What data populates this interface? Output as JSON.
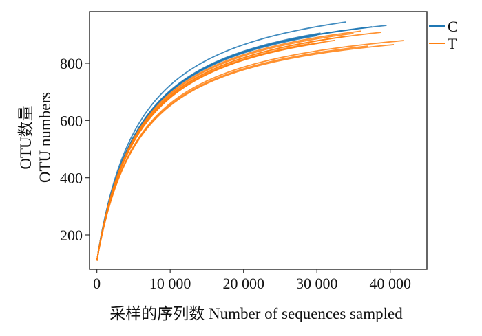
{
  "chart_data": {
    "type": "line",
    "xlabel": "采样的序列数  Number of sequences sampled",
    "ylabel_line1": "OTU数量",
    "ylabel_line2": "OTU numbers",
    "xlim": [
      -1000,
      45000
    ],
    "ylim": [
      80,
      980
    ],
    "x_ticks": [
      0,
      10000,
      20000,
      30000,
      40000
    ],
    "x_tick_labels": [
      "0",
      "10 000",
      "20 000",
      "30 000",
      "40 000"
    ],
    "y_ticks": [
      200,
      400,
      600,
      800
    ],
    "y_tick_labels": [
      "200",
      "400",
      "600",
      "800"
    ],
    "grid": false,
    "legend_position": "top-right-outside",
    "curve_start": 110,
    "series": [
      {
        "name": "C",
        "color": "#1f77b4",
        "curves": [
          {
            "end_x": 34000,
            "end_y": 944
          },
          {
            "end_x": 39500,
            "end_y": 932
          },
          {
            "end_x": 37500,
            "end_y": 927
          },
          {
            "end_x": 33500,
            "end_y": 914
          },
          {
            "end_x": 30500,
            "end_y": 905
          },
          {
            "end_x": 30000,
            "end_y": 896
          }
        ]
      },
      {
        "name": "T",
        "color": "#ff7f0e",
        "curves": [
          {
            "end_x": 41800,
            "end_y": 879
          },
          {
            "end_x": 38800,
            "end_y": 908
          },
          {
            "end_x": 36000,
            "end_y": 912
          },
          {
            "end_x": 35000,
            "end_y": 904
          },
          {
            "end_x": 40500,
            "end_y": 865
          },
          {
            "end_x": 37000,
            "end_y": 860
          },
          {
            "end_x": 33800,
            "end_y": 893
          },
          {
            "end_x": 32500,
            "end_y": 880
          },
          {
            "end_x": 31000,
            "end_y": 873
          },
          {
            "end_x": 29000,
            "end_y": 868
          }
        ]
      }
    ]
  }
}
